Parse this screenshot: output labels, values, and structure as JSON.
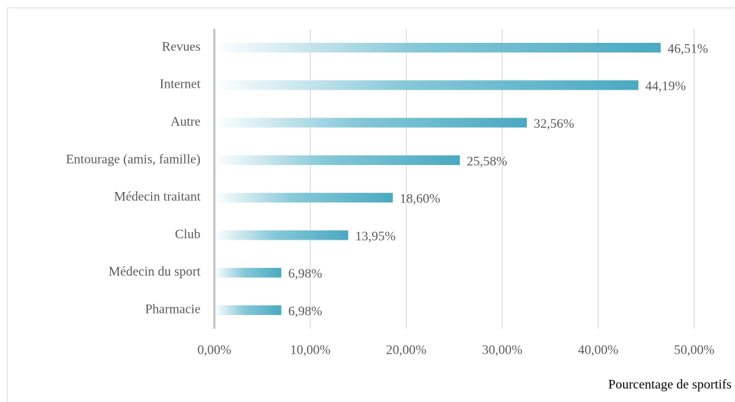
{
  "chart_data": {
    "type": "bar",
    "orientation": "horizontal",
    "x_label": "Pourcentage de sportifs",
    "categories": [
      "Revues",
      "Internet",
      "Autre",
      "Entourage (amis, famille)",
      "Médecin traitant",
      "Club",
      "Médecin du sport",
      "Pharmacie"
    ],
    "values": [
      46.51,
      44.19,
      32.56,
      25.58,
      18.6,
      13.95,
      6.98,
      6.98
    ],
    "value_labels": [
      "46,51%",
      "44,19%",
      "32,56%",
      "25,58%",
      "18,60%",
      "13,95%",
      "6,98%",
      "6,98%"
    ],
    "color": "#4aa9c1",
    "xlim": [
      0,
      50
    ],
    "xticks": [
      {
        "value": 0,
        "label": "0,00%"
      },
      {
        "value": 10,
        "label": "10,00%"
      },
      {
        "value": 20,
        "label": "20,00%"
      },
      {
        "value": 30,
        "label": "30,00%"
      },
      {
        "value": 40,
        "label": "40,00%"
      },
      {
        "value": 50,
        "label": "50,00%"
      }
    ],
    "grid": true
  }
}
